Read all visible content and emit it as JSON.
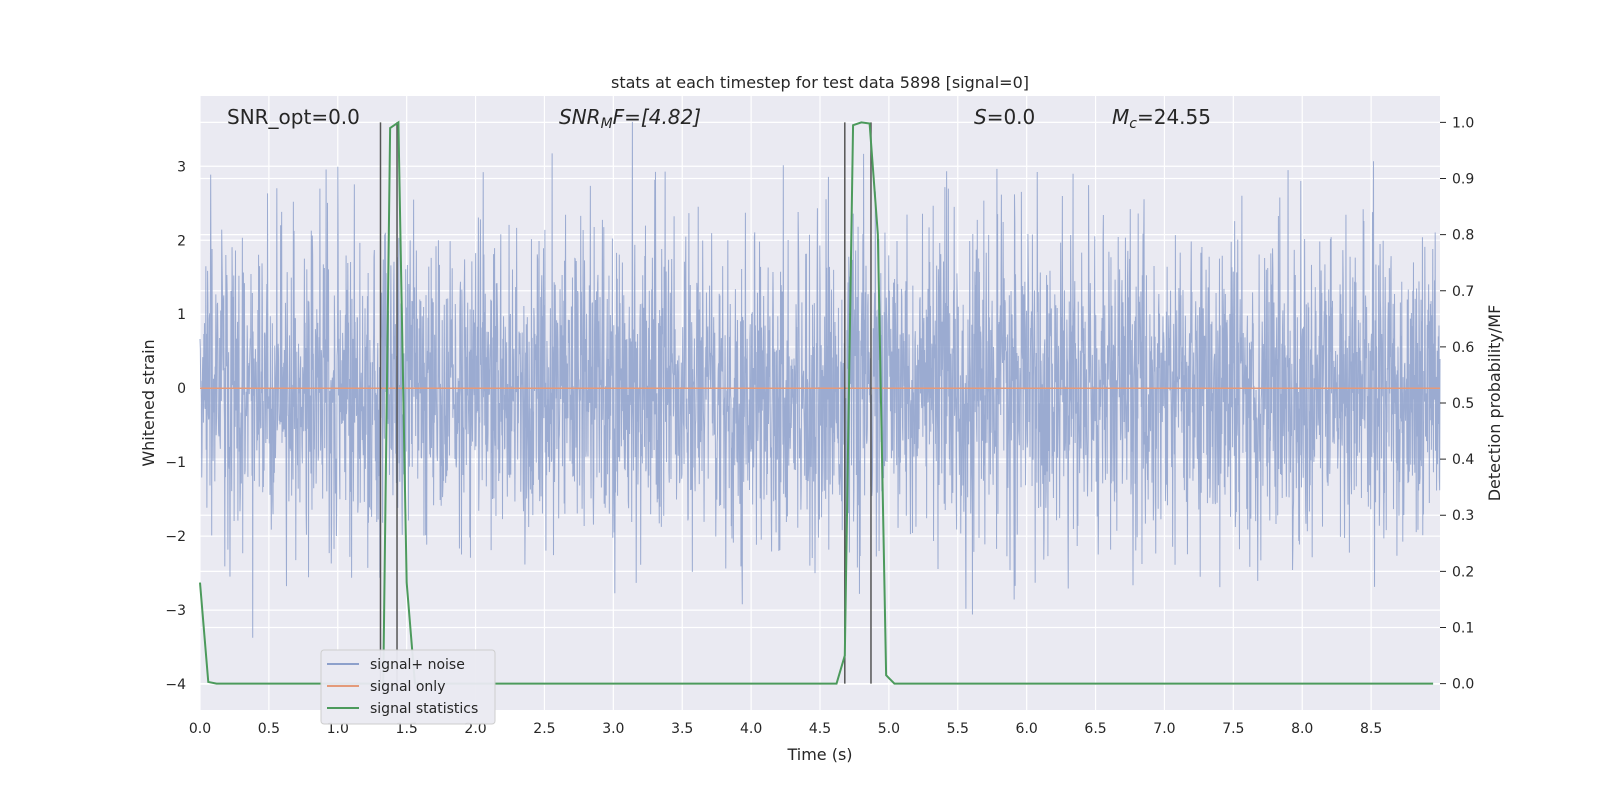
{
  "chart_data": {
    "type": "line",
    "title": "stats at each timestep for test data 5898 [signal=0]",
    "xlabel": "Time (s)",
    "ylabel_left": "Whitened strain",
    "ylabel_right": "Detection probability/MF",
    "xlim": [
      0,
      9
    ],
    "ylim_left": [
      -4.35,
      3.95
    ],
    "ylim_right": [
      -0.047,
      1.047
    ],
    "x_ticks": [
      "0.0",
      "0.5",
      "1.0",
      "1.5",
      "2.0",
      "2.5",
      "3.0",
      "3.5",
      "4.0",
      "4.5",
      "5.0",
      "5.5",
      "6.0",
      "6.5",
      "7.0",
      "7.5",
      "8.0",
      "8.5"
    ],
    "y_ticks_left": [
      "−4",
      "−3",
      "−2",
      "−1",
      "0",
      "1",
      "2",
      "3"
    ],
    "y_ticks_right": [
      "0.0",
      "0.1",
      "0.2",
      "0.3",
      "0.4",
      "0.5",
      "0.6",
      "0.7",
      "0.8",
      "0.9",
      "1.0"
    ],
    "grid": true,
    "legend_position": "lower-left",
    "annotations": {
      "snr_opt": "SNR_opt=0.0",
      "snr_mf_base": "SNR",
      "snr_mf_sub": "M",
      "snr_mf_rest": "F=[4.82]",
      "s_sym": "S",
      "s_rest": "=0.0",
      "mc_sym": "M",
      "mc_sub": "c",
      "mc_rest": "=24.55"
    },
    "series": [
      {
        "name": "signal+ noise",
        "color": "#8da0cb",
        "description_values": "whitened Gaussian noise, roughly within [-3.8, 3.6]",
        "amplitude_range": [
          -3.8,
          3.6
        ]
      },
      {
        "name": "signal only",
        "color": "#e49a7a",
        "x": [
          0,
          9
        ],
        "y": [
          0,
          0
        ]
      },
      {
        "name": "signal statistics",
        "color": "#4c9a5c",
        "axis": "right",
        "x": [
          0.0,
          0.06,
          0.12,
          1.2,
          1.3,
          1.33,
          1.38,
          1.44,
          1.5,
          1.56,
          1.65,
          4.62,
          4.68,
          4.74,
          4.8,
          4.86,
          4.92,
          4.98,
          5.04,
          8.95
        ],
        "y": [
          0.18,
          0.003,
          0.0,
          0.0,
          0.0,
          0.0,
          0.99,
          1.0,
          0.18,
          0.0,
          0.0,
          0.0,
          0.05,
          0.995,
          1.0,
          0.998,
          0.8,
          0.015,
          0.0,
          0.0
        ]
      }
    ],
    "vertical_markers_x": [
      1.31,
      1.43,
      4.68,
      4.87
    ]
  }
}
